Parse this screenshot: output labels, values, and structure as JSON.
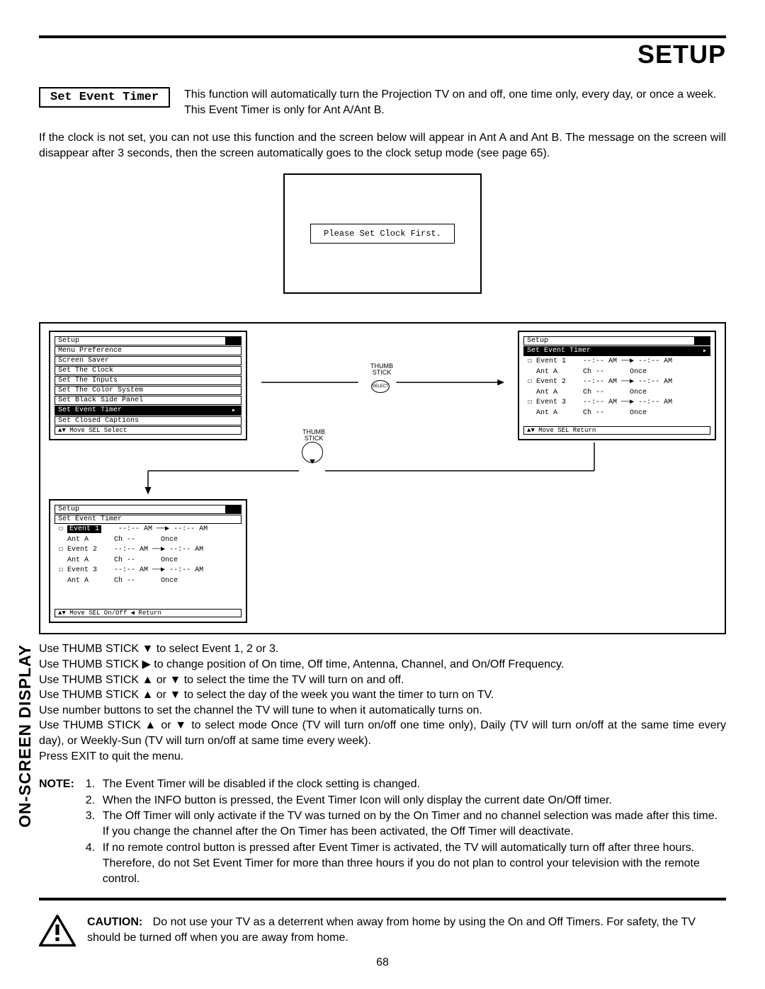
{
  "header": {
    "title": "SETUP"
  },
  "side_tab": {
    "light": "ON-SCREEN ",
    "bold": "DISPLAY"
  },
  "feature": {
    "box_label": "Set Event Timer",
    "desc": "This function will automatically turn the Projection TV on and off, one time only, every day, or once a week.  This Event Timer is only for Ant A/Ant B."
  },
  "clock_warning_paragraph": "If the clock is not set, you can not use this function and the screen below will appear in Ant A and Ant B.  The message on the screen will disappear after 3 seconds, then the screen automatically goes to the clock setup mode (see page 65).",
  "clock_screen_text": "Please Set Clock First.",
  "osd_setup_menu": {
    "title": "Setup",
    "items": [
      "Menu Preference",
      "Screen Saver",
      "Set The Clock",
      "Set The Inputs",
      "Set The Color System",
      "Set Black Side Panel",
      "Set Event Timer",
      "Set Closed Captions"
    ],
    "highlight_index": 6,
    "footer": "▲▼ Move  SEL Select"
  },
  "osd_event_list": {
    "title": "Setup",
    "subtitle": "Set Event Timer",
    "rows": [
      "☐ Event 1    --:-- AM ──▶ --:-- AM",
      "  Ant A      Ch --      Once",
      "☐ Event 2    --:-- AM ──▶ --:-- AM",
      "  Ant A      Ch --      Once",
      "☐ Event 3    --:-- AM ──▶ --:-- AM",
      "  Ant A      Ch --      Once"
    ],
    "footer": "▲▼ Move  SEL Return"
  },
  "osd_event_detail": {
    "title": "Setup",
    "subtitle": "Set Event Timer",
    "rows": [
      "☐ Event 1    --:-- AM ──▶ --:-- AM",
      "  Ant A      Ch --      Once",
      "☐ Event 2    --:-- AM ──▶ --:-- AM",
      "  Ant A      Ch --      Once",
      "☐ Event 3    --:-- AM ──▶ --:-- AM",
      "  Ant A      Ch --      Once"
    ],
    "highlight_row": 0,
    "highlight_label": "Event 1",
    "footer": "▲▼ Move  SEL On/Off  ◀ Return"
  },
  "thumb_label": "THUMB\nSTICK",
  "select_label": "SELECT",
  "instructions": [
    "Use THUMB STICK ▼ to select Event 1, 2 or 3.",
    "Use THUMB STICK ▶ to change position of On time, Off time, Antenna, Channel, and On/Off Frequency.",
    "Use THUMB STICK ▲ or ▼ to select the time the TV will turn on and off.",
    "Use THUMB STICK ▲ or ▼ to select the day of the week you want the timer to turn on TV.",
    "Use number buttons to set the channel the TV will tune to when it automatically turns on.",
    "Use THUMB STICK ▲ or ▼ to select mode Once (TV will turn on/off one time only), Daily (TV will turn on/off at the same time every day), or Weekly-Sun (TV will turn on/off at same time every week).",
    "Press EXIT to quit the menu."
  ],
  "note": {
    "label": "NOTE:",
    "items": [
      "The Event Timer will be disabled if the clock setting is changed.",
      "When the INFO button is pressed, the Event Timer Icon will only display the current date On/Off timer.",
      "The Off Timer will only activate if the TV was turned on by the On Timer and no channel selection was made after this time.  If you change the channel after the On Timer has been activated, the Off Timer will deactivate.",
      "If no remote control button is pressed after Event Timer is activated, the TV will automatically turn off after three hours. Therefore, do not Set Event Timer for more than three hours if you do not plan to control your television with the remote control."
    ]
  },
  "caution": {
    "label": "CAUTION:",
    "text": "Do not use your TV as a deterrent when away from home by using the On and Off Timers.  For safety, the TV should be turned off when you are away from home."
  },
  "page_number": "68"
}
